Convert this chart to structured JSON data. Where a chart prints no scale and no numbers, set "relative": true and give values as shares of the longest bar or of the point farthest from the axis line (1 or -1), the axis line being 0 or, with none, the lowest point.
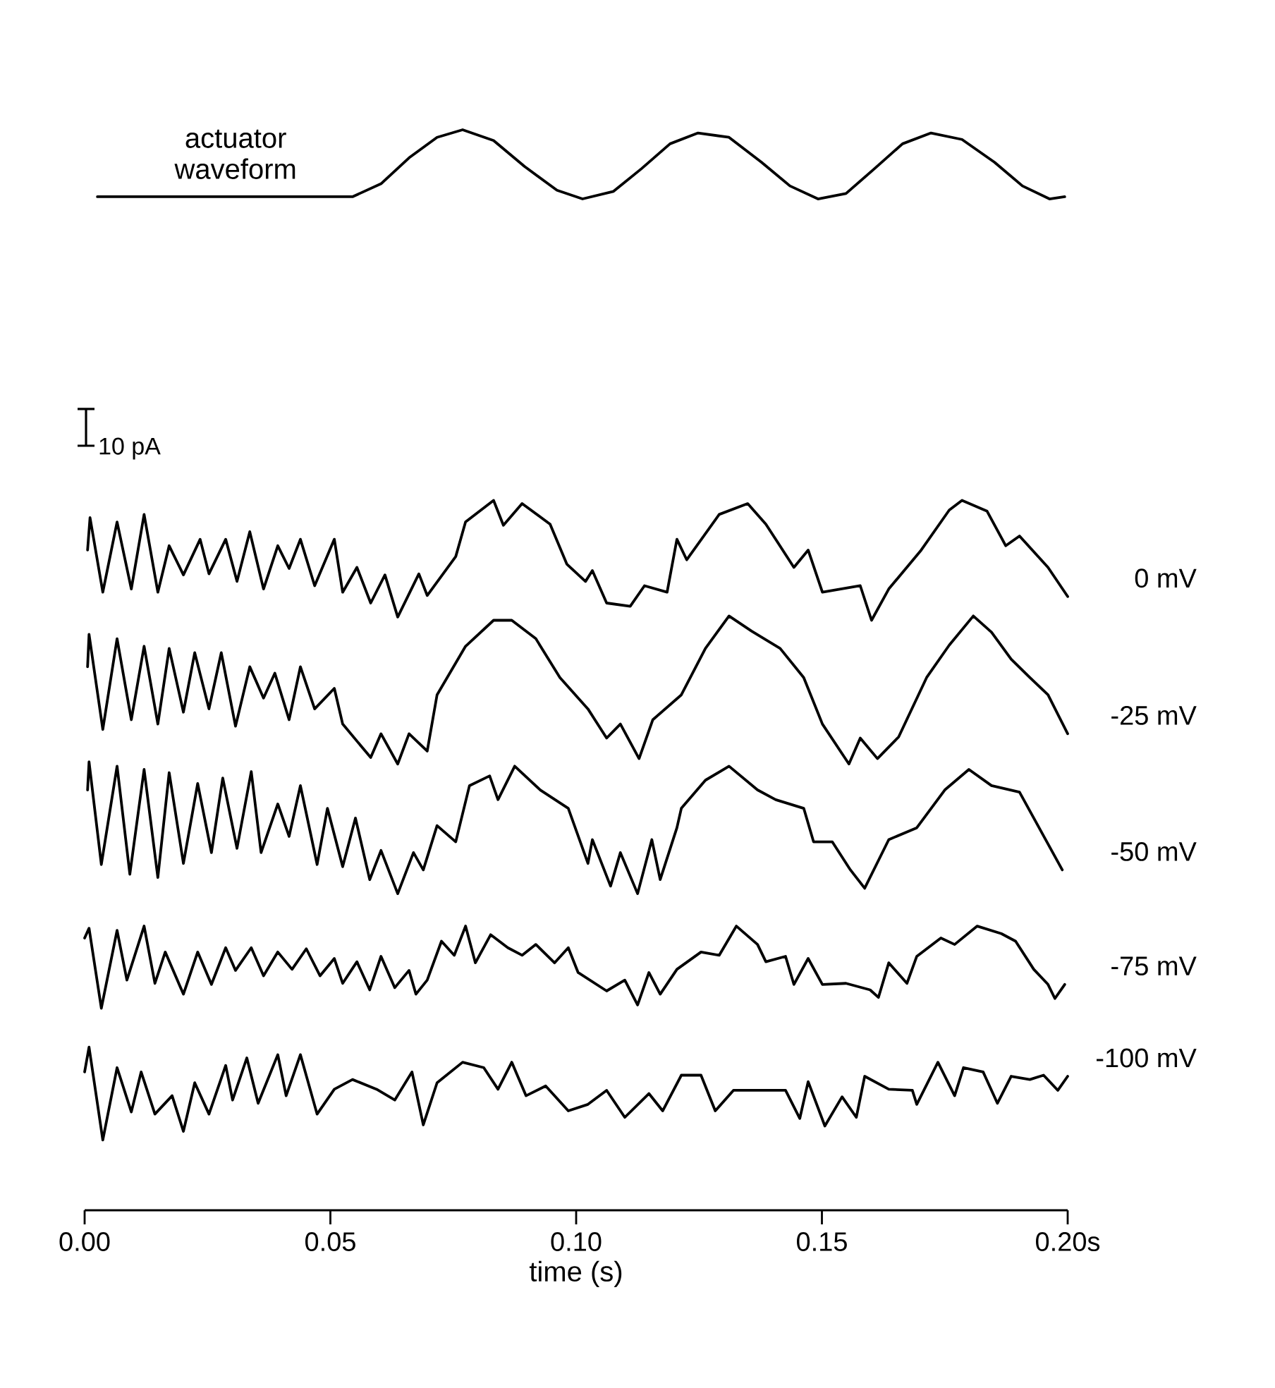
{
  "chart_data": {
    "type": "line",
    "relative": true,
    "xlabel": "time (s)",
    "xlim": [
      0,
      0.2
    ],
    "xticks": [
      {
        "value": 0,
        "label": "0.00"
      },
      {
        "value": 0.05,
        "label": "0.05"
      },
      {
        "value": 0.1,
        "label": "0.10"
      },
      {
        "value": 0.15,
        "label": "0.15"
      },
      {
        "value": 0.2,
        "label": "0.20s"
      }
    ],
    "annotations": [
      "10 pA"
    ],
    "line_style": "solid",
    "series": [
      {
        "name": "actuator waveform",
        "color": "#000000",
        "x": [
          0.0026,
          0.0545,
          0.0603,
          0.066,
          0.0717,
          0.0769,
          0.0832,
          0.0895,
          0.0961,
          0.1013,
          0.1076,
          0.1133,
          0.1191,
          0.1248,
          0.1311,
          0.1377,
          0.1435,
          0.1492,
          0.1549,
          0.1607,
          0.1664,
          0.1722,
          0.1785,
          0.1851,
          0.1908,
          0.1963,
          0.1994
        ],
        "values": [
          0.938,
          0.938,
          0.95,
          0.974,
          0.993,
          1.0,
          0.99,
          0.966,
          0.944,
          0.936,
          0.943,
          0.964,
          0.987,
          0.997,
          0.993,
          0.97,
          0.948,
          0.936,
          0.941,
          0.964,
          0.987,
          0.997,
          0.991,
          0.97,
          0.948,
          0.936,
          0.938
        ]
      },
      {
        "name": "0 mV",
        "color": "#000000",
        "x": [
          0.0006,
          0.0011,
          0.0037,
          0.0066,
          0.0095,
          0.0121,
          0.0149,
          0.0172,
          0.0201,
          0.0235,
          0.0253,
          0.0287,
          0.031,
          0.0336,
          0.0364,
          0.0393,
          0.0416,
          0.0439,
          0.0468,
          0.0508,
          0.0525,
          0.0554,
          0.0582,
          0.0611,
          0.0637,
          0.068,
          0.0697,
          0.0755,
          0.0775,
          0.0832,
          0.0852,
          0.089,
          0.0947,
          0.0981,
          0.1019,
          0.1033,
          0.1062,
          0.111,
          0.1139,
          0.1185,
          0.1205,
          0.1225,
          0.1291,
          0.1349,
          0.1386,
          0.1443,
          0.1472,
          0.1501,
          0.1578,
          0.1601,
          0.1636,
          0.1702,
          0.1759,
          0.1785,
          0.1836,
          0.1874,
          0.1902,
          0.196,
          0.2
        ],
        "values": [
          0.611,
          0.641,
          0.572,
          0.637,
          0.575,
          0.644,
          0.572,
          0.615,
          0.588,
          0.621,
          0.589,
          0.621,
          0.582,
          0.628,
          0.575,
          0.615,
          0.594,
          0.621,
          0.578,
          0.621,
          0.572,
          0.595,
          0.562,
          0.588,
          0.549,
          0.589,
          0.569,
          0.605,
          0.637,
          0.657,
          0.634,
          0.654,
          0.635,
          0.598,
          0.582,
          0.592,
          0.562,
          0.559,
          0.578,
          0.572,
          0.621,
          0.602,
          0.644,
          0.654,
          0.635,
          0.595,
          0.611,
          0.572,
          0.578,
          0.546,
          0.575,
          0.611,
          0.648,
          0.657,
          0.647,
          0.615,
          0.624,
          0.595,
          0.568
        ]
      },
      {
        "name": "-25 mV",
        "color": "#000000",
        "x": [
          0.0006,
          0.0009,
          0.0037,
          0.0066,
          0.0095,
          0.0121,
          0.0149,
          0.0172,
          0.0201,
          0.0224,
          0.0253,
          0.0278,
          0.0307,
          0.0336,
          0.0364,
          0.0387,
          0.0416,
          0.0439,
          0.0468,
          0.0508,
          0.0525,
          0.0582,
          0.0603,
          0.0637,
          0.066,
          0.0697,
          0.0717,
          0.0775,
          0.0832,
          0.0869,
          0.0918,
          0.0967,
          0.1024,
          0.1062,
          0.109,
          0.1128,
          0.1156,
          0.1214,
          0.1263,
          0.1311,
          0.1357,
          0.1415,
          0.1463,
          0.1501,
          0.1555,
          0.1578,
          0.1613,
          0.1656,
          0.1713,
          0.1759,
          0.1808,
          0.1845,
          0.1885,
          0.1923,
          0.196,
          0.2
        ],
        "values": [
          0.503,
          0.533,
          0.445,
          0.529,
          0.454,
          0.522,
          0.45,
          0.52,
          0.461,
          0.516,
          0.464,
          0.516,
          0.448,
          0.503,
          0.474,
          0.497,
          0.454,
          0.503,
          0.464,
          0.483,
          0.45,
          0.419,
          0.441,
          0.413,
          0.441,
          0.425,
          0.477,
          0.522,
          0.546,
          0.546,
          0.529,
          0.493,
          0.464,
          0.437,
          0.45,
          0.418,
          0.454,
          0.477,
          0.52,
          0.55,
          0.536,
          0.52,
          0.493,
          0.45,
          0.413,
          0.437,
          0.418,
          0.438,
          0.493,
          0.523,
          0.55,
          0.535,
          0.51,
          0.493,
          0.477,
          0.441
        ]
      },
      {
        "name": "-50 mV",
        "color": "#000000",
        "x": [
          0.0006,
          0.0009,
          0.0034,
          0.0066,
          0.0092,
          0.0121,
          0.0149,
          0.0172,
          0.0201,
          0.023,
          0.0258,
          0.0281,
          0.031,
          0.0339,
          0.0359,
          0.0393,
          0.0416,
          0.0439,
          0.0473,
          0.0494,
          0.0525,
          0.0551,
          0.058,
          0.0603,
          0.0637,
          0.0669,
          0.0689,
          0.0717,
          0.0755,
          0.0783,
          0.0824,
          0.0841,
          0.0875,
          0.0927,
          0.0984,
          0.1024,
          0.1033,
          0.107,
          0.109,
          0.1125,
          0.1154,
          0.1171,
          0.1205,
          0.1214,
          0.1263,
          0.1311,
          0.1369,
          0.1406,
          0.1463,
          0.1483,
          0.1521,
          0.1558,
          0.1587,
          0.1636,
          0.1693,
          0.175,
          0.1799,
          0.1845,
          0.1902,
          0.1931,
          0.196,
          0.1989
        ],
        "values": [
          0.389,
          0.415,
          0.32,
          0.411,
          0.311,
          0.408,
          0.308,
          0.405,
          0.321,
          0.395,
          0.331,
          0.4,
          0.335,
          0.406,
          0.331,
          0.376,
          0.346,
          0.393,
          0.32,
          0.372,
          0.318,
          0.363,
          0.306,
          0.333,
          0.293,
          0.331,
          0.315,
          0.356,
          0.341,
          0.393,
          0.402,
          0.38,
          0.411,
          0.389,
          0.372,
          0.321,
          0.343,
          0.3,
          0.331,
          0.293,
          0.343,
          0.306,
          0.354,
          0.372,
          0.398,
          0.411,
          0.389,
          0.38,
          0.372,
          0.341,
          0.341,
          0.315,
          0.298,
          0.343,
          0.354,
          0.389,
          0.408,
          0.393,
          0.387,
          0.363,
          0.339,
          0.315
        ]
      },
      {
        "name": "-75 mV",
        "color": "#000000",
        "x": [
          0.0,
          0.0009,
          0.0034,
          0.0066,
          0.0086,
          0.0121,
          0.0143,
          0.0164,
          0.0201,
          0.023,
          0.0258,
          0.0287,
          0.0307,
          0.0339,
          0.0364,
          0.0393,
          0.0422,
          0.0451,
          0.0479,
          0.0508,
          0.0525,
          0.0554,
          0.058,
          0.0603,
          0.0631,
          0.066,
          0.0674,
          0.0697,
          0.0726,
          0.0752,
          0.0775,
          0.0795,
          0.0826,
          0.0861,
          0.089,
          0.0918,
          0.0956,
          0.0984,
          0.1004,
          0.1062,
          0.1099,
          0.1125,
          0.1148,
          0.1171,
          0.1205,
          0.1254,
          0.1291,
          0.1326,
          0.1369,
          0.1386,
          0.1426,
          0.1443,
          0.1472,
          0.1501,
          0.1549,
          0.1598,
          0.1615,
          0.1636,
          0.1673,
          0.1693,
          0.1742,
          0.177,
          0.1816,
          0.1865,
          0.1894,
          0.1931,
          0.196,
          0.1974,
          0.1994
        ],
        "values": [
          0.252,
          0.261,
          0.187,
          0.259,
          0.213,
          0.263,
          0.21,
          0.239,
          0.2,
          0.239,
          0.209,
          0.243,
          0.222,
          0.243,
          0.217,
          0.239,
          0.223,
          0.242,
          0.217,
          0.233,
          0.21,
          0.23,
          0.204,
          0.235,
          0.206,
          0.222,
          0.2,
          0.213,
          0.249,
          0.236,
          0.263,
          0.229,
          0.255,
          0.243,
          0.236,
          0.246,
          0.229,
          0.243,
          0.22,
          0.203,
          0.213,
          0.19,
          0.22,
          0.2,
          0.223,
          0.239,
          0.236,
          0.263,
          0.246,
          0.23,
          0.235,
          0.209,
          0.233,
          0.209,
          0.21,
          0.204,
          0.197,
          0.229,
          0.21,
          0.235,
          0.252,
          0.246,
          0.263,
          0.256,
          0.249,
          0.223,
          0.209,
          0.196,
          0.209
        ]
      },
      {
        "name": "-100 mV",
        "color": "#000000",
        "x": [
          0.0,
          0.0009,
          0.0037,
          0.0066,
          0.0095,
          0.0115,
          0.0143,
          0.0178,
          0.0201,
          0.0224,
          0.0253,
          0.0287,
          0.0301,
          0.033,
          0.0353,
          0.0393,
          0.041,
          0.0439,
          0.0473,
          0.0508,
          0.0545,
          0.0594,
          0.0631,
          0.0666,
          0.0689,
          0.0717,
          0.0769,
          0.0812,
          0.0841,
          0.0869,
          0.0898,
          0.0938,
          0.0984,
          0.1024,
          0.1062,
          0.1099,
          0.1148,
          0.1176,
          0.1214,
          0.1254,
          0.1283,
          0.132,
          0.1369,
          0.1426,
          0.1455,
          0.1472,
          0.1506,
          0.1541,
          0.157,
          0.1587,
          0.1636,
          0.1684,
          0.1693,
          0.1736,
          0.177,
          0.1788,
          0.1828,
          0.1857,
          0.1885,
          0.1923,
          0.1951,
          0.198,
          0.2
        ],
        "values": [
          0.128,
          0.151,
          0.065,
          0.132,
          0.091,
          0.128,
          0.089,
          0.106,
          0.073,
          0.118,
          0.089,
          0.134,
          0.102,
          0.141,
          0.099,
          0.144,
          0.106,
          0.144,
          0.089,
          0.112,
          0.121,
          0.112,
          0.102,
          0.128,
          0.079,
          0.118,
          0.137,
          0.132,
          0.112,
          0.137,
          0.106,
          0.115,
          0.092,
          0.098,
          0.111,
          0.086,
          0.108,
          0.092,
          0.125,
          0.125,
          0.092,
          0.111,
          0.111,
          0.111,
          0.085,
          0.119,
          0.078,
          0.105,
          0.086,
          0.124,
          0.112,
          0.111,
          0.098,
          0.137,
          0.106,
          0.132,
          0.128,
          0.099,
          0.124,
          0.121,
          0.125,
          0.111,
          0.124
        ]
      }
    ]
  }
}
